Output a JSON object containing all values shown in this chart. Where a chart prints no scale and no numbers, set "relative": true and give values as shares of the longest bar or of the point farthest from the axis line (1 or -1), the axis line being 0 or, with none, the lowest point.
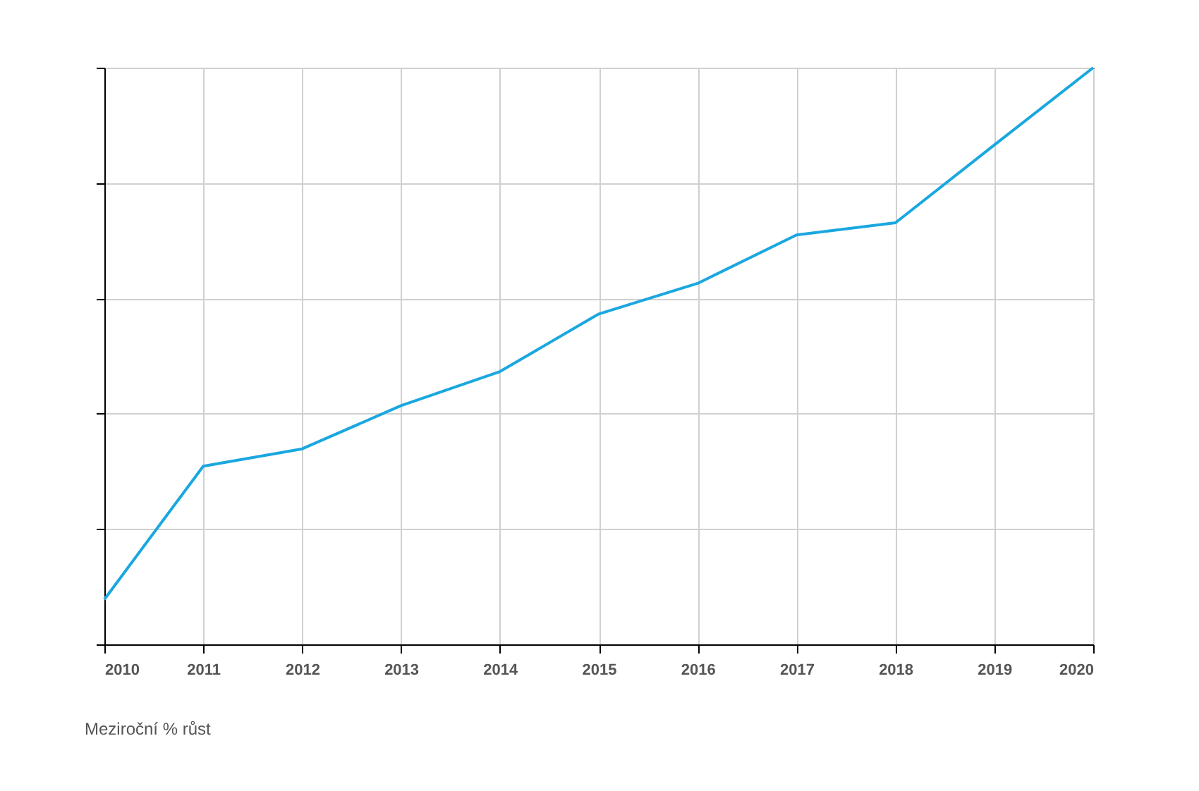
{
  "chart_data": {
    "type": "line",
    "relative": true,
    "x": [
      2010,
      2011,
      2012,
      2013,
      2014,
      2015,
      2016,
      2017,
      2018,
      2019,
      2020
    ],
    "series": [
      {
        "color": "#1aa7e0",
        "values": [
          0.078,
          0.309,
          0.339,
          0.414,
          0.473,
          0.573,
          0.626,
          0.71,
          0.731,
          0.866,
          1
        ]
      }
    ],
    "xlim": [
      2010,
      2020
    ],
    "xticks": [
      2010,
      2011,
      2012,
      2013,
      2014,
      2015,
      2016,
      2017,
      2018,
      2019,
      2020
    ],
    "grid": true,
    "marker": "none",
    "line_style": "solid",
    "annotations": [
      "Meziroční % růst"
    ]
  }
}
